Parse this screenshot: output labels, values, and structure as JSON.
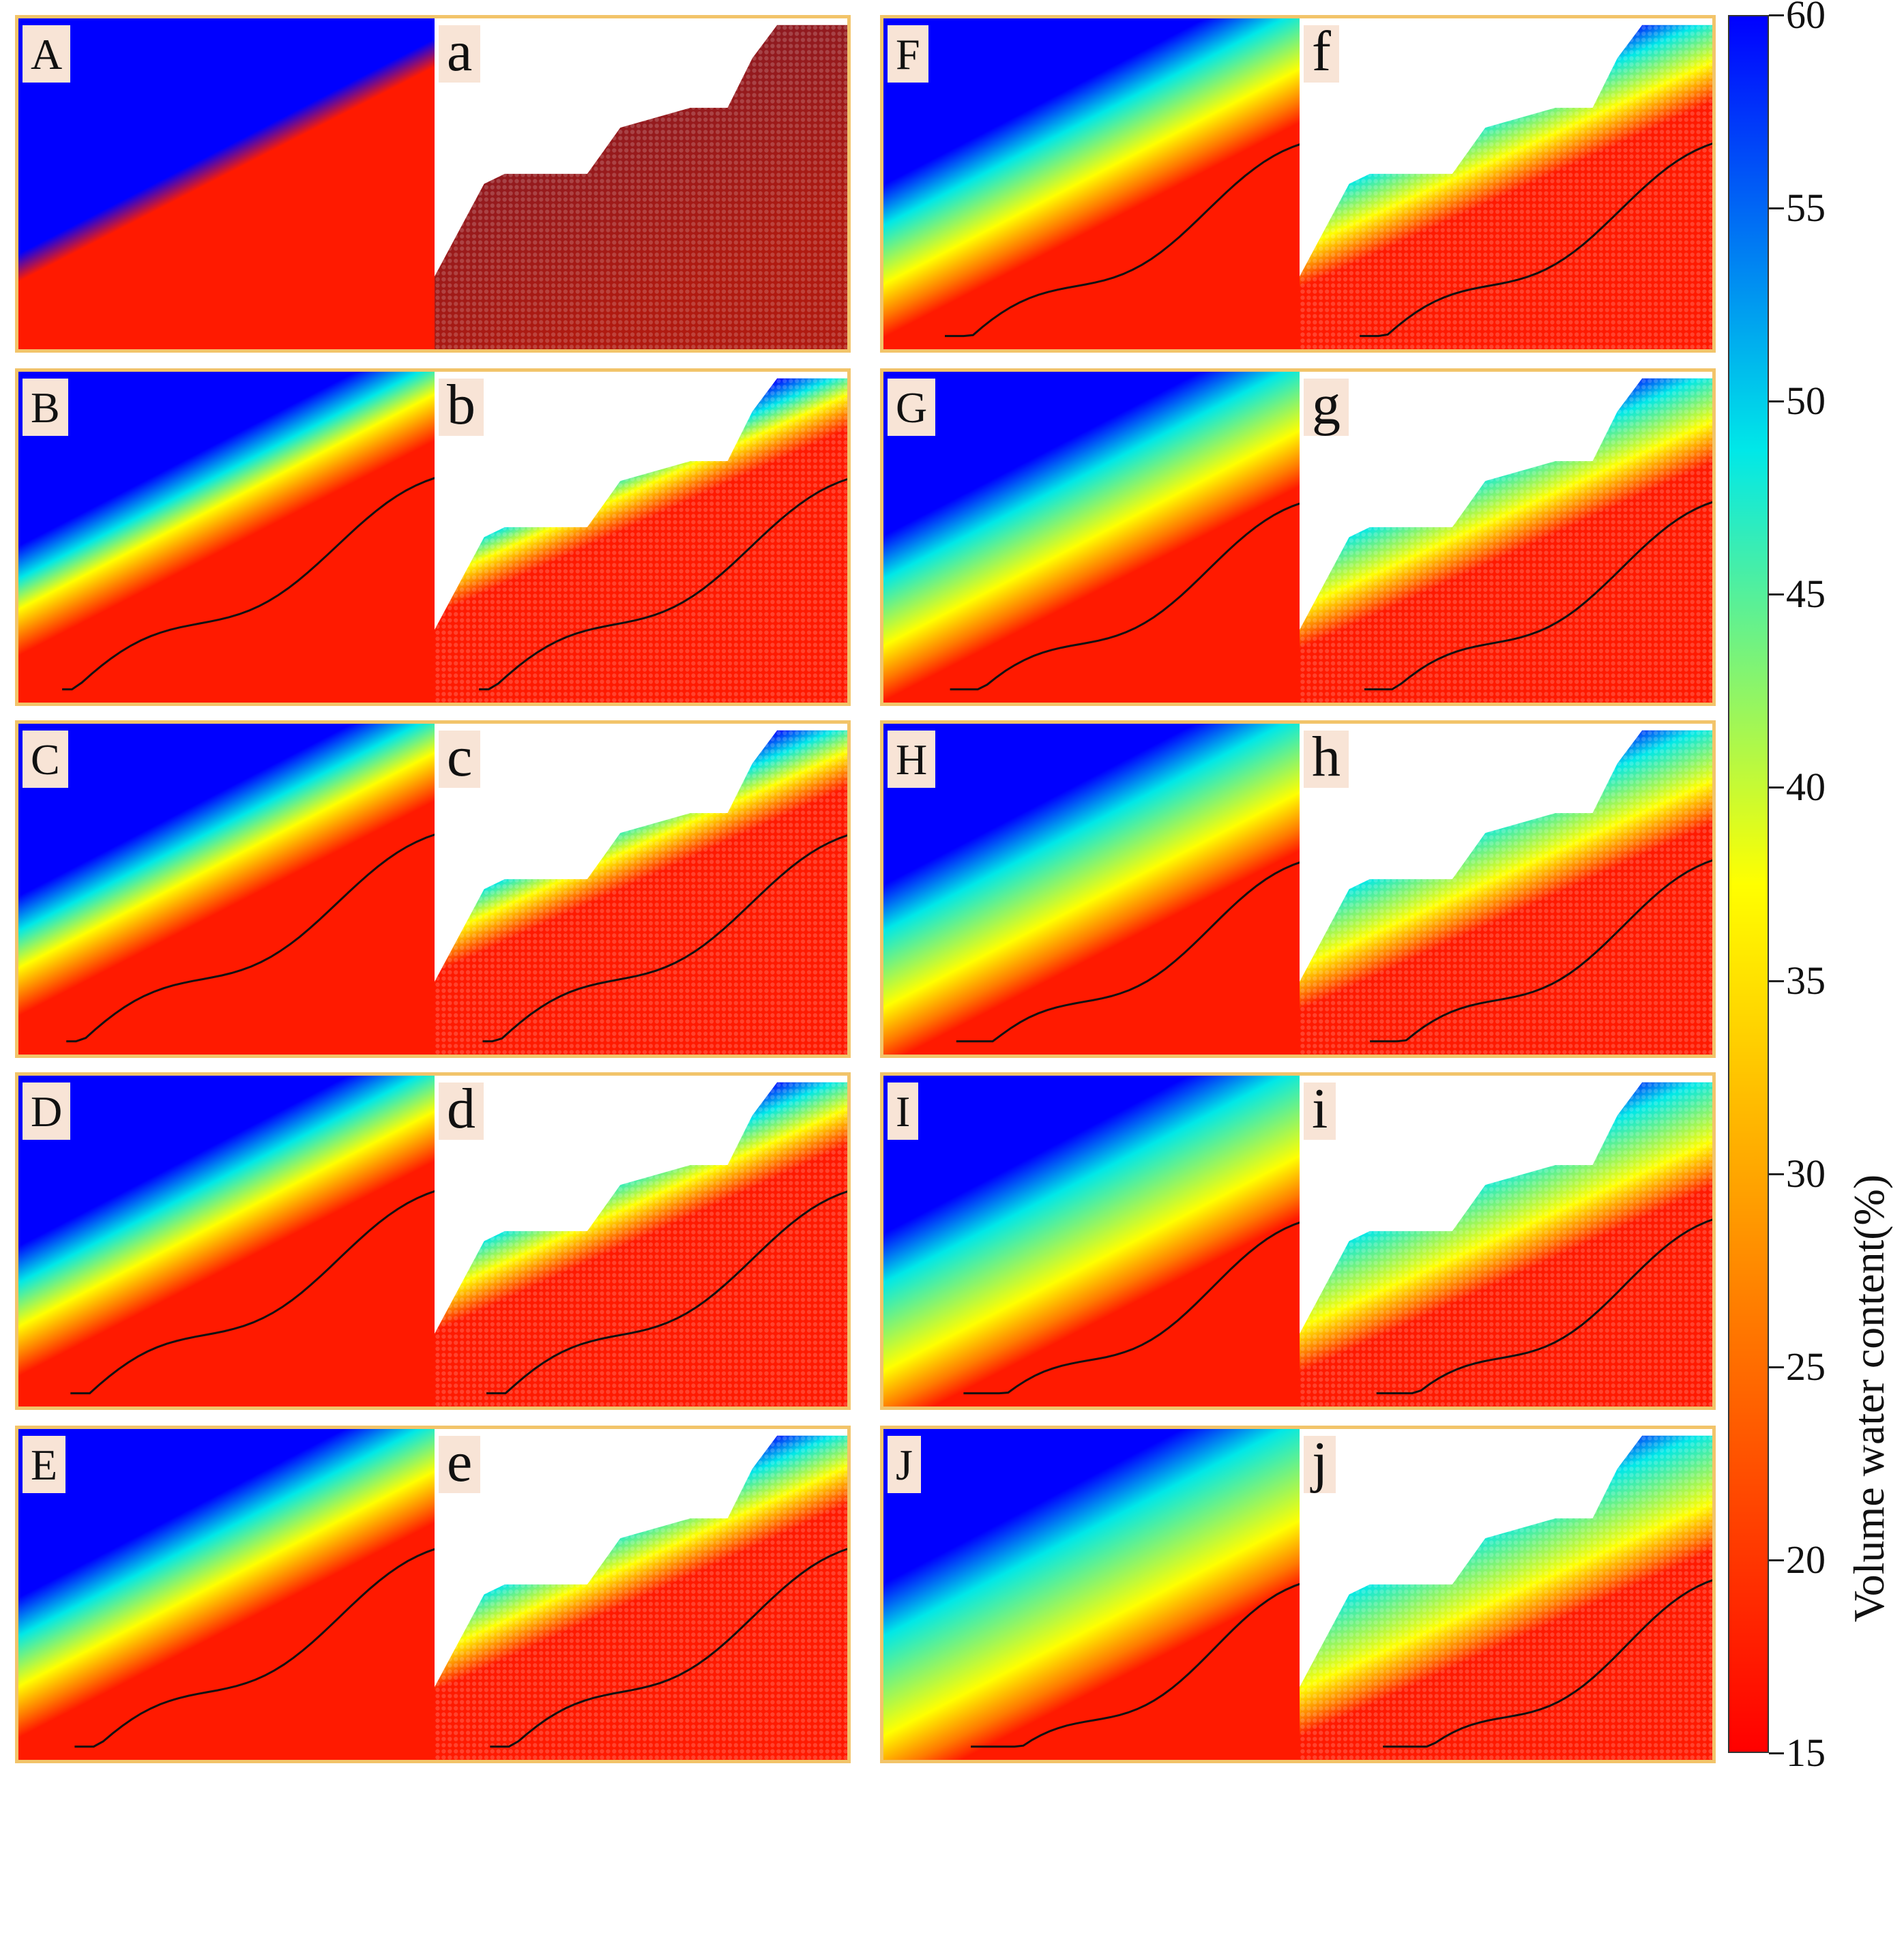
{
  "chart_data": {
    "type": "heatmap",
    "title": "",
    "colorbar": {
      "label": "Volume water content(%)",
      "min": 15,
      "max": 60,
      "ticks": [
        "60",
        "55",
        "50",
        "45",
        "40",
        "35",
        "30",
        "25",
        "20",
        "15"
      ],
      "colormap": [
        "#ff0000",
        "#ff7a00",
        "#ffff00",
        "#00e8e8",
        "#0000ff"
      ]
    },
    "panels": [
      {
        "label": "A",
        "type": "contour"
      },
      {
        "label": "a",
        "type": "particles"
      },
      {
        "label": "B",
        "type": "contour"
      },
      {
        "label": "b",
        "type": "particles"
      },
      {
        "label": "C",
        "type": "contour"
      },
      {
        "label": "c",
        "type": "particles"
      },
      {
        "label": "D",
        "type": "contour"
      },
      {
        "label": "d",
        "type": "particles"
      },
      {
        "label": "E",
        "type": "contour"
      },
      {
        "label": "e",
        "type": "particles"
      },
      {
        "label": "F",
        "type": "contour"
      },
      {
        "label": "f",
        "type": "particles"
      },
      {
        "label": "G",
        "type": "contour"
      },
      {
        "label": "g",
        "type": "particles"
      },
      {
        "label": "H",
        "type": "contour"
      },
      {
        "label": "h",
        "type": "particles"
      },
      {
        "label": "I",
        "type": "contour"
      },
      {
        "label": "i",
        "type": "particles"
      },
      {
        "label": "J",
        "type": "contour"
      },
      {
        "label": "j",
        "type": "particles"
      }
    ],
    "stages": [
      {
        "id": "A",
        "spread": 0.03,
        "has_front": false
      },
      {
        "id": "B",
        "spread": 0.1,
        "has_front": true
      },
      {
        "id": "C",
        "spread": 0.14,
        "has_front": true
      },
      {
        "id": "D",
        "spread": 0.18,
        "has_front": true
      },
      {
        "id": "E",
        "spread": 0.22,
        "has_front": true
      },
      {
        "id": "F",
        "spread": 0.27,
        "has_front": true
      },
      {
        "id": "G",
        "spread": 0.32,
        "has_front": true
      },
      {
        "id": "H",
        "spread": 0.38,
        "has_front": true
      },
      {
        "id": "I",
        "spread": 0.45,
        "has_front": true
      },
      {
        "id": "J",
        "spread": 0.52,
        "has_front": true
      }
    ],
    "colors": {
      "saturated": "#0000ff",
      "dry": "#ff1a00",
      "front_line": "#111111",
      "frame": "#f2c46a"
    }
  }
}
